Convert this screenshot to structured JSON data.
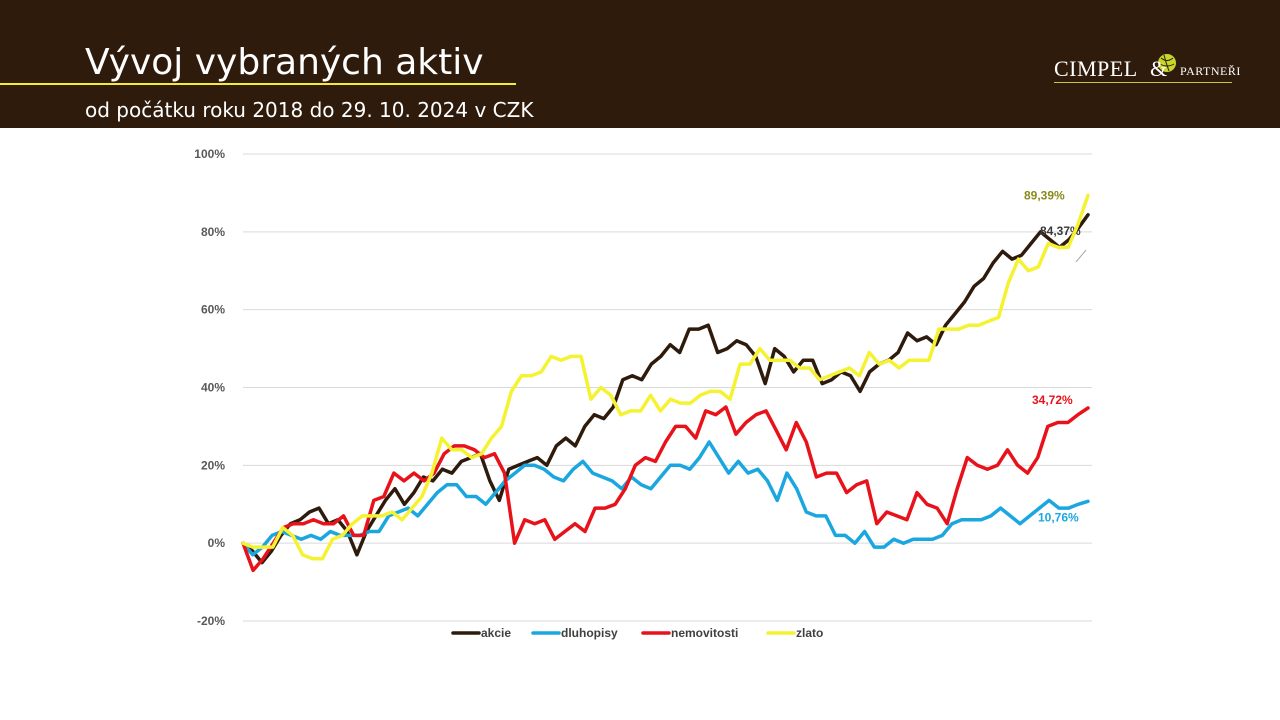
{
  "header": {
    "title": "Vývoj vybraných aktiv",
    "subtitle": "od počátku roku 2018 do 29. 10. 2024 v CZK"
  },
  "logo": {
    "name": "CIMPEL",
    "amp": "&",
    "suffix": "PARTNEŘI",
    "accent": "#c8d62b"
  },
  "chart_data": {
    "type": "line",
    "ylim": [
      -20,
      100
    ],
    "y_ticks": [
      -20,
      0,
      20,
      40,
      60,
      80,
      100
    ],
    "y_tick_labels": [
      "-20%",
      "0%",
      "20%",
      "40%",
      "60%",
      "80%",
      "100%"
    ],
    "x_range": [
      "2018-01",
      "2024-10"
    ],
    "grid": "horizontal",
    "legend_position": "bottom",
    "series": [
      {
        "name": "akcie",
        "color": "#2e1b0c",
        "end_label": "84,37%",
        "values": [
          0,
          -2,
          -5,
          -2,
          2,
          5,
          6,
          8,
          9,
          5,
          6,
          3,
          -3,
          3,
          7,
          11,
          14,
          10,
          13,
          17,
          16,
          19,
          18,
          21,
          22,
          23,
          16,
          11,
          19,
          20,
          21,
          22,
          20,
          25,
          27,
          25,
          30,
          33,
          32,
          35,
          42,
          43,
          42,
          46,
          48,
          51,
          49,
          55,
          55,
          56,
          49,
          50,
          52,
          51,
          48,
          41,
          50,
          48,
          44,
          47,
          47,
          41,
          42,
          44,
          43,
          39,
          44,
          46,
          47,
          49,
          54,
          52,
          53,
          51,
          56,
          59,
          62,
          66,
          68,
          72,
          75,
          73,
          74,
          77,
          80,
          78,
          76,
          78,
          81,
          84.37
        ]
      },
      {
        "name": "dluhopisy",
        "color": "#1aa7e0",
        "end_label": "10,76%",
        "values": [
          0,
          -3,
          -1,
          2,
          3,
          2,
          1,
          2,
          1,
          3,
          2,
          2,
          2,
          3,
          3,
          7,
          8,
          9,
          7,
          10,
          13,
          15,
          15,
          12,
          12,
          10,
          13,
          16,
          18,
          20,
          20,
          19,
          17,
          16,
          19,
          21,
          18,
          17,
          16,
          14,
          17,
          15,
          14,
          17,
          20,
          20,
          19,
          22,
          26,
          22,
          18,
          21,
          18,
          19,
          16,
          11,
          18,
          14,
          8,
          7,
          7,
          2,
          2,
          0,
          3,
          -1,
          -1,
          1,
          0,
          1,
          1,
          1,
          2,
          5,
          6,
          6,
          6,
          7,
          9,
          7,
          5,
          7,
          9,
          11,
          9,
          9,
          10,
          10.76
        ]
      },
      {
        "name": "nemovitosti",
        "color": "#e8131a",
        "end_label": "34,72%",
        "values": [
          0,
          -7,
          -4,
          0,
          4,
          5,
          5,
          6,
          5,
          5,
          7,
          2,
          2,
          11,
          12,
          18,
          16,
          18,
          16,
          18,
          23,
          25,
          25,
          24,
          22,
          23,
          18,
          0,
          6,
          5,
          6,
          1,
          3,
          5,
          3,
          9,
          9,
          10,
          14,
          20,
          22,
          21,
          26,
          30,
          30,
          27,
          34,
          33,
          35,
          28,
          31,
          33,
          34,
          29,
          24,
          31,
          26,
          17,
          18,
          18,
          13,
          15,
          16,
          5,
          8,
          7,
          6,
          13,
          10,
          9,
          5,
          14,
          22,
          20,
          19,
          20,
          24,
          20,
          18,
          22,
          30,
          31,
          31,
          33,
          34.72
        ]
      },
      {
        "name": "zlato",
        "color": "#f5f232",
        "end_label": "89,39%",
        "values": [
          0,
          -1,
          -1,
          -1,
          4,
          2,
          -3,
          -4,
          -4,
          1,
          2,
          5,
          7,
          7,
          7,
          8,
          6,
          9,
          12,
          18,
          27,
          24,
          24,
          22,
          23,
          27,
          30,
          39,
          43,
          43,
          44,
          48,
          47,
          48,
          48,
          37,
          40,
          38,
          33,
          34,
          34,
          38,
          34,
          37,
          36,
          36,
          38,
          39,
          39,
          37,
          46,
          46,
          50,
          47,
          47,
          47,
          45,
          45,
          42,
          43,
          44,
          45,
          43,
          49,
          46,
          47,
          45,
          47,
          47,
          47,
          55,
          55,
          55,
          56,
          56,
          57,
          58,
          67,
          73,
          70,
          71,
          77,
          76,
          76,
          82,
          89.39
        ]
      }
    ]
  }
}
